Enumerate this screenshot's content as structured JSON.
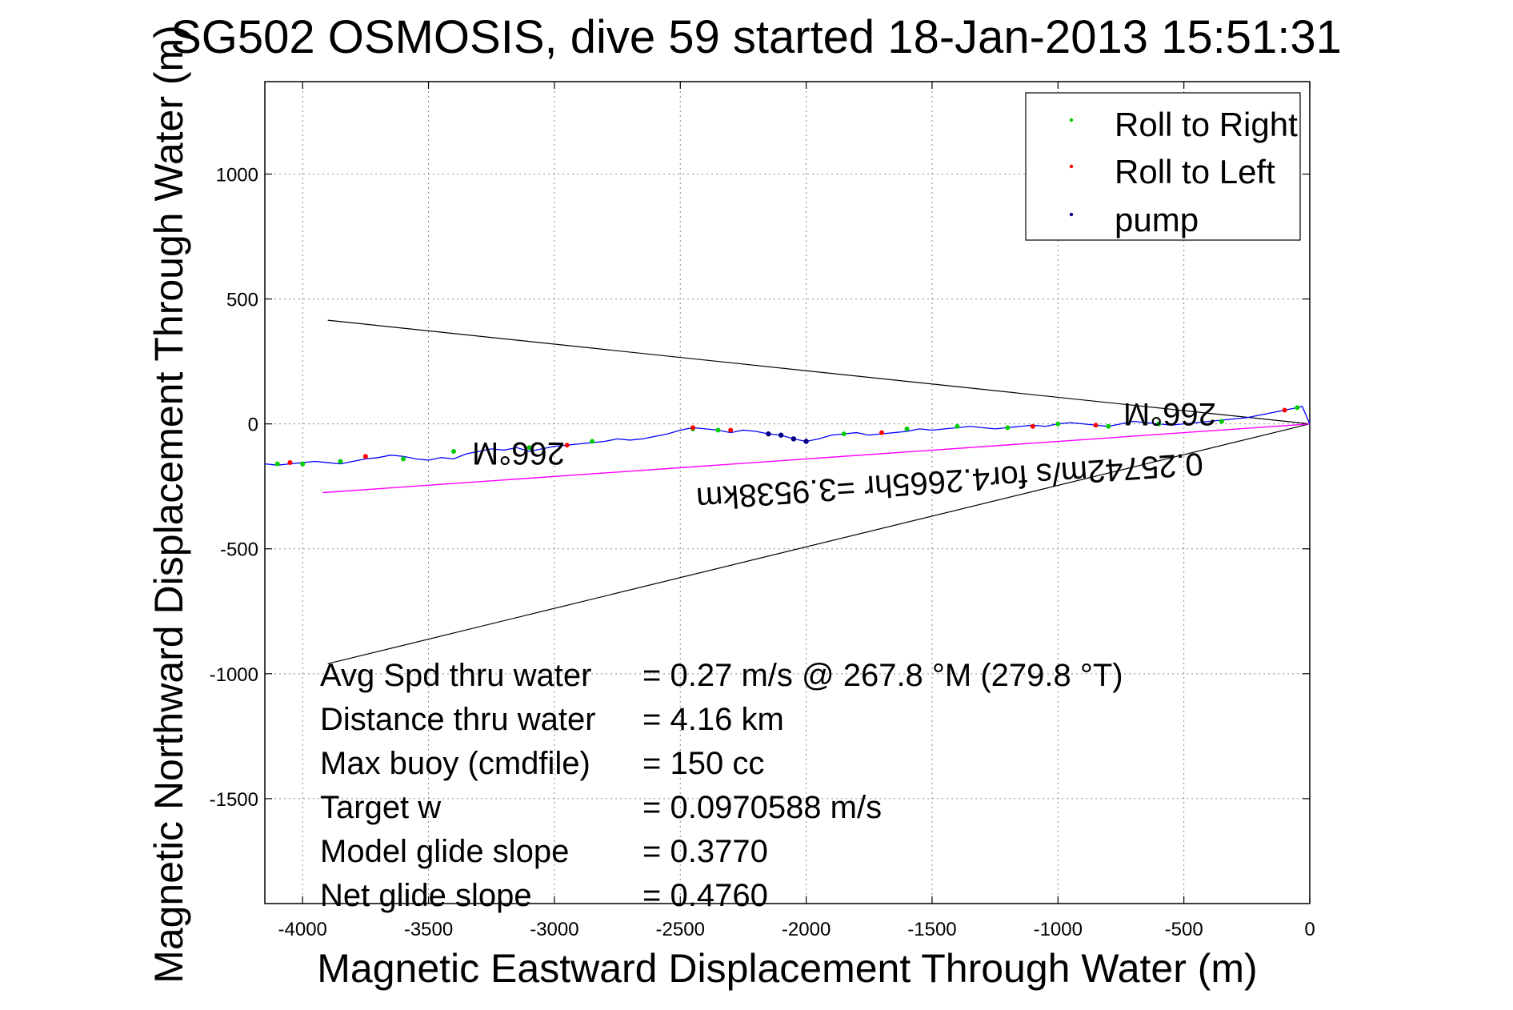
{
  "chart_data": {
    "type": "line",
    "title": "SG502 OSMOSIS, dive 59 started 18-Jan-2013 15:51:31",
    "xlabel": "Magnetic Eastward Displacement Through Water (m)",
    "ylabel": "Magnetic Northward Displacement Through Water (m)",
    "xlim": [
      -4150,
      0
    ],
    "ylim": [
      -1920,
      1370
    ],
    "xticks": [
      -4000,
      -3500,
      -3000,
      -2500,
      -2000,
      -1500,
      -1000,
      -500,
      0
    ],
    "yticks": [
      -1500,
      -1000,
      -500,
      0,
      500,
      1000
    ],
    "grid": true,
    "legend_position": "top-right",
    "legend": [
      {
        "label": "Roll to Right",
        "color": "#00cc00"
      },
      {
        "label": "Roll to Left",
        "color": "#ff0000"
      },
      {
        "label": "pump",
        "color": "#000080"
      }
    ],
    "track": {
      "name": "track",
      "color": "#0000ff",
      "x": [
        0,
        -30,
        -50,
        -100,
        -150,
        -200,
        -250,
        -300,
        -350,
        -400,
        -450,
        -500,
        -550,
        -600,
        -650,
        -700,
        -750,
        -800,
        -850,
        -900,
        -950,
        -1000,
        -1050,
        -1100,
        -1150,
        -1200,
        -1250,
        -1300,
        -1350,
        -1400,
        -1450,
        -1500,
        -1550,
        -1600,
        -1650,
        -1700,
        -1750,
        -1800,
        -1850,
        -1900,
        -1950,
        -2000,
        -2050,
        -2100,
        -2150,
        -2200,
        -2250,
        -2300,
        -2350,
        -2400,
        -2450,
        -2500,
        -2550,
        -2600,
        -2650,
        -2700,
        -2750,
        -2800,
        -2850,
        -2900,
        -2950,
        -3000,
        -3050,
        -3100,
        -3150,
        -3200,
        -3250,
        -3300,
        -3350,
        -3400,
        -3450,
        -3500,
        -3550,
        -3600,
        -3650,
        -3700,
        -3750,
        -3800,
        -3850,
        -3900,
        -3950,
        -4000,
        -4050,
        -4100,
        -4150
      ],
      "y": [
        0,
        70,
        65,
        55,
        45,
        35,
        25,
        20,
        15,
        10,
        5,
        0,
        -5,
        0,
        5,
        10,
        0,
        -10,
        -5,
        0,
        5,
        0,
        -10,
        -5,
        -10,
        -15,
        -20,
        -15,
        -10,
        -15,
        -20,
        -25,
        -20,
        -30,
        -35,
        -40,
        -45,
        -35,
        -40,
        -45,
        -60,
        -70,
        -60,
        -45,
        -40,
        -30,
        -25,
        -35,
        -25,
        -20,
        -15,
        -25,
        -40,
        -50,
        -60,
        -65,
        -60,
        -70,
        -75,
        -80,
        -85,
        -90,
        -100,
        -110,
        -95,
        -105,
        -100,
        -110,
        -120,
        -140,
        -135,
        -145,
        -140,
        -130,
        -125,
        -135,
        -140,
        -150,
        -160,
        -155,
        -150,
        -155,
        -160,
        -165,
        -160
      ]
    },
    "roll_right": {
      "x": [
        -50,
        -350,
        -600,
        -800,
        -1000,
        -1200,
        -1400,
        -1600,
        -1850,
        -2350,
        -2450,
        -2850,
        -3100,
        -3400,
        -3600,
        -3850,
        -4000,
        -4100
      ],
      "y": [
        65,
        10,
        0,
        -10,
        0,
        -15,
        -10,
        -20,
        -40,
        -25,
        -20,
        -70,
        -95,
        -110,
        -140,
        -150,
        -160,
        -160
      ]
    },
    "roll_left": {
      "x": [
        -100,
        -850,
        -1100,
        -1700,
        -2300,
        -2450,
        -2950,
        -3750,
        -4050
      ],
      "y": [
        55,
        -5,
        -10,
        -35,
        -25,
        -15,
        -85,
        -130,
        -155
      ]
    },
    "pump": {
      "x": [
        -2150,
        -2100,
        -2050,
        -2000
      ],
      "y": [
        -40,
        -45,
        -60,
        -70
      ]
    },
    "lines": [
      {
        "name": "heading-upper",
        "color": "#000000",
        "x": [
          0,
          -3900
        ],
        "y": [
          0,
          415
        ]
      },
      {
        "name": "heading-lower",
        "color": "#000000",
        "x": [
          0,
          -3900
        ],
        "y": [
          0,
          -960
        ]
      },
      {
        "name": "avg-velocity",
        "color": "#ff00ff",
        "x": [
          0,
          -3920
        ],
        "y": [
          0,
          -275
        ]
      }
    ],
    "annotations": [
      {
        "name": "heading-near",
        "text": "266°M"
      },
      {
        "name": "heading-far",
        "text": "266°M"
      },
      {
        "name": "avg-velocity-label",
        "text": "0.25742m/s for4.2665hr =3.9538km"
      }
    ],
    "stats": [
      {
        "label": "Avg Spd thru water",
        "value": "=  0.27 m/s @ 267.8 °M (279.8 °T)"
      },
      {
        "label": "Distance thru water",
        "value": "=  4.16 km"
      },
      {
        "label": "Max buoy (cmdfile)",
        "value": "= 150 cc"
      },
      {
        "label": "Target w",
        "value": "= 0.0970588 m/s"
      },
      {
        "label": "Model glide slope",
        "value": "= 0.3770"
      },
      {
        "label": "Net glide slope",
        "value": "= 0.4760"
      }
    ]
  }
}
